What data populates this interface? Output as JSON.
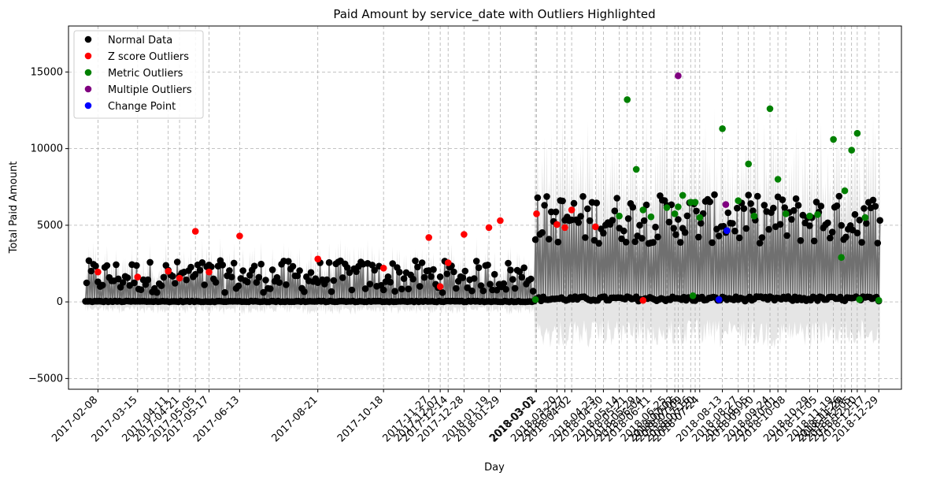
{
  "chart_data": {
    "type": "scatter",
    "title": "Paid Amount by service_date with Outliers Highlighted",
    "xlabel": "Day",
    "ylabel": "Total Paid Amount",
    "xlim": [
      "2017-01-13",
      "2019-01-18"
    ],
    "ylim": [
      -5700,
      18000
    ],
    "y_ticks": [
      -5000,
      0,
      5000,
      10000,
      15000
    ],
    "grid": true,
    "legend_position": "top-left",
    "x_ticks": [
      "2017-02-08",
      "2017-03-15",
      "2017-04-11",
      "2017-04-21",
      "2017-05-05",
      "2017-05-17",
      "2017-06-13",
      "2017-08-21",
      "2017-10-18",
      "2017-11-27",
      "2017-12-07",
      "2017-12-14",
      "2017-12-28",
      "2018-01-19",
      "2018-01-29",
      "2018-03-01",
      "2018-03-02",
      "2018-03-20",
      "2018-03-27",
      "2018-04-02",
      "2018-04-23",
      "2018-04-30",
      "2018-05-14",
      "2018-05-21",
      "2018-05-29",
      "2018-06-04",
      "2018-06-11",
      "2018-06-25",
      "2018-07-02",
      "2018-07-05",
      "2018-07-09",
      "2018-07-16",
      "2018-07-20",
      "2018-07-24",
      "2018-08-13",
      "2018-08-27",
      "2018-09-05",
      "2018-09-10",
      "2018-09-24",
      "2018-10-01",
      "2018-10-08",
      "2018-10-29",
      "2018-11-05",
      "2018-11-19",
      "2018-11-26",
      "2018-11-29",
      "2018-12-05",
      "2018-12-10",
      "2018-12-17",
      "2018-12-29"
    ],
    "series": [
      {
        "name": "Normal Data",
        "color": "#000000"
      },
      {
        "name": "Z score Outliers",
        "color": "#ff0000",
        "points": [
          [
            "2017-02-08",
            1950
          ],
          [
            "2017-03-15",
            1620
          ],
          [
            "2017-04-11",
            2000
          ],
          [
            "2017-04-21",
            1550
          ],
          [
            "2017-05-05",
            4600
          ],
          [
            "2017-05-17",
            1950
          ],
          [
            "2017-06-13",
            4300
          ],
          [
            "2017-08-21",
            2800
          ],
          [
            "2017-10-18",
            2200
          ],
          [
            "2017-11-27",
            4200
          ],
          [
            "2017-12-07",
            1000
          ],
          [
            "2017-12-14",
            2550
          ],
          [
            "2017-12-28",
            4400
          ],
          [
            "2018-01-19",
            4850
          ],
          [
            "2018-01-29",
            5300
          ],
          [
            "2018-03-02",
            5750
          ],
          [
            "2018-03-20",
            5050
          ],
          [
            "2018-03-27",
            4850
          ],
          [
            "2018-04-02",
            6000
          ],
          [
            "2018-04-23",
            4900
          ],
          [
            "2018-06-04",
            100
          ]
        ]
      },
      {
        "name": "Metric Outliers",
        "color": "#008000",
        "points": [
          [
            "2018-03-01",
            150
          ],
          [
            "2018-05-14",
            5600
          ],
          [
            "2018-05-21",
            13200
          ],
          [
            "2018-05-29",
            8650
          ],
          [
            "2018-06-04",
            6000
          ],
          [
            "2018-06-11",
            5550
          ],
          [
            "2018-06-25",
            6150
          ],
          [
            "2018-07-02",
            5750
          ],
          [
            "2018-07-05",
            6200
          ],
          [
            "2018-07-09",
            6950
          ],
          [
            "2018-07-16",
            6500
          ],
          [
            "2018-07-20",
            6500
          ],
          [
            "2018-07-24",
            5500
          ],
          [
            "2018-08-13",
            11300
          ],
          [
            "2018-08-27",
            6600
          ],
          [
            "2018-09-05",
            9000
          ],
          [
            "2018-09-10",
            5600
          ],
          [
            "2018-09-24",
            12600
          ],
          [
            "2018-10-01",
            8000
          ],
          [
            "2018-10-08",
            5750
          ],
          [
            "2018-10-29",
            5600
          ],
          [
            "2018-11-05",
            5700
          ],
          [
            "2018-11-19",
            10600
          ],
          [
            "2018-11-26",
            2900
          ],
          [
            "2018-11-29",
            7250
          ],
          [
            "2018-12-05",
            9900
          ],
          [
            "2018-12-10",
            11000
          ],
          [
            "2018-12-17",
            5500
          ],
          [
            "2018-12-29",
            100
          ],
          [
            "2018-07-18",
            400
          ],
          [
            "2018-12-12",
            150
          ]
        ]
      },
      {
        "name": "Multiple Outliers",
        "color": "#800080",
        "points": [
          [
            "2018-07-05",
            14750
          ],
          [
            "2018-08-16",
            6350
          ]
        ]
      },
      {
        "name": "Change Point",
        "color": "#0000ff",
        "points": [
          [
            "2018-08-10",
            150
          ],
          [
            "2018-08-17",
            4650
          ]
        ]
      }
    ]
  }
}
